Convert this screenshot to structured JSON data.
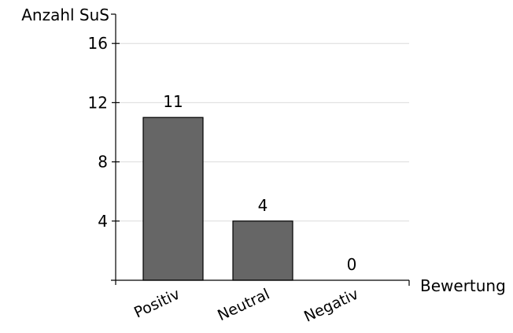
{
  "chart_data": {
    "type": "bar",
    "categories": [
      "Positiv",
      "Neutral",
      "Negativ"
    ],
    "values": [
      11,
      4,
      0
    ],
    "data_labels": [
      "11",
      "4",
      "0"
    ],
    "title": "",
    "xlabel": "Bewertung",
    "ylabel": "Anzahl SuS",
    "ylim": [
      0,
      17
    ],
    "yticks": [
      4,
      8,
      12,
      16
    ],
    "ytick_labels": [
      "4",
      "8",
      "12",
      "16"
    ],
    "grid": true,
    "bar_color": "#666666",
    "gridline_color": "#dcdcdc"
  }
}
